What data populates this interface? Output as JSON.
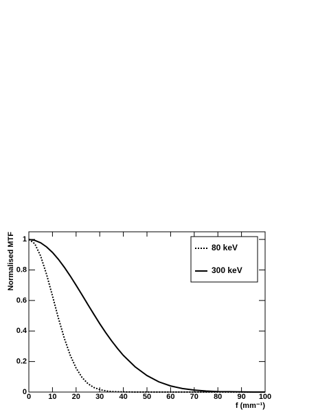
{
  "chart_data": {
    "type": "line",
    "x_label": "f (mm⁻¹)",
    "y_label": "Normalised MTF",
    "x": [
      0,
      2.5,
      5,
      7.5,
      10,
      12.5,
      15,
      17.5,
      20,
      22.5,
      25,
      27.5,
      30,
      32.5,
      35,
      37.5,
      40,
      45,
      50,
      55,
      60,
      65,
      70,
      75,
      80,
      85,
      90,
      95,
      100
    ],
    "series": [
      {
        "name": "80 keV",
        "color": "#000000",
        "dash": "dotted",
        "values": [
          1,
          0.972,
          0.891,
          0.771,
          0.63,
          0.485,
          0.353,
          0.242,
          0.157,
          0.096,
          0.055,
          0.03,
          0.016,
          0.008,
          0.003,
          0.002,
          0.001,
          0,
          0,
          0,
          0,
          0,
          0,
          0,
          0,
          0,
          0,
          0,
          0
        ]
      },
      {
        "name": "300 keV",
        "color": "#000000",
        "dash": "solid",
        "values": [
          1,
          0.994,
          0.978,
          0.951,
          0.915,
          0.87,
          0.818,
          0.761,
          0.7,
          0.637,
          0.573,
          0.51,
          0.448,
          0.39,
          0.336,
          0.286,
          0.24,
          0.165,
          0.108,
          0.067,
          0.04,
          0.023,
          0.013,
          0.007,
          0.003,
          0.002,
          0.001,
          0,
          0
        ]
      }
    ],
    "xlim": [
      0,
      100
    ],
    "xticks": [
      0,
      10,
      20,
      30,
      40,
      50,
      60,
      70,
      80,
      90,
      100
    ],
    "ylim": [
      0,
      1.05
    ],
    "yticks": [
      0,
      0.2,
      0.4,
      0.6,
      0.8,
      1
    ],
    "grid": false,
    "legend": "upper right"
  }
}
